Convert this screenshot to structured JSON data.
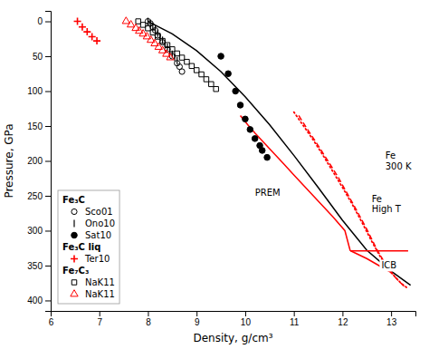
{
  "chart_data": {
    "type": "line",
    "xlabel": "Density, g/cm³",
    "ylabel": "Pressure, GPa",
    "xlim": [
      6,
      13.5
    ],
    "ylim": [
      415,
      -15
    ],
    "xticks": [
      6,
      7,
      8,
      9,
      10,
      11,
      12,
      13
    ],
    "yticks": [
      0,
      50,
      100,
      150,
      200,
      250,
      300,
      350,
      400
    ],
    "grid": false,
    "legend": "lower left",
    "series": [
      {
        "type": "line",
        "color": "#000000",
        "line_style": "solid",
        "x": [
          8.0,
          8.5,
          9.0,
          9.5,
          10.0,
          10.5,
          11.0,
          11.5,
          12.0,
          12.5,
          13.0,
          13.4
        ],
        "values": [
          0,
          18,
          42,
          72,
          108,
          148,
          192,
          238,
          285,
          328,
          358,
          378
        ]
      },
      {
        "type": "line",
        "color": "#ff0000",
        "line_style": "solid",
        "x": [
          9.9,
          10.05,
          10.2,
          10.4,
          10.6,
          10.8,
          11.0,
          11.2,
          11.4,
          11.6,
          11.8,
          12.05,
          12.16
        ],
        "values": [
          135,
          148,
          160,
          175,
          190,
          205,
          220,
          235,
          250,
          265,
          280,
          300,
          329
        ]
      },
      {
        "type": "line",
        "color": "#ff0000",
        "line_style": "solid",
        "x": [
          12.17,
          12.5,
          12.8,
          13.0
        ],
        "values": [
          329,
          340,
          352,
          360
        ]
      },
      {
        "type": "line",
        "color": "#ff0000",
        "line_style": "solid",
        "x": [
          12.16,
          13.35
        ],
        "values": [
          329,
          329
        ]
      },
      {
        "type": "line",
        "color": "#ff0000",
        "line_style": "dashed",
        "x": [
          11.1,
          11.3,
          11.5,
          11.7,
          11.9,
          12.1,
          12.3,
          12.5,
          12.7,
          12.9,
          13.1,
          13.3
        ],
        "values": [
          135,
          157,
          178,
          200,
          222,
          247,
          272,
          298,
          326,
          350,
          368,
          382
        ]
      },
      {
        "type": "line",
        "color": "#ff0000",
        "line_style": "dotted",
        "x": [
          11.0,
          11.2,
          11.4,
          11.6,
          11.8,
          12.0,
          12.2,
          12.4,
          12.6,
          12.8,
          13.0,
          13.2,
          13.35
        ],
        "values": [
          130,
          150,
          170,
          192,
          215,
          238,
          262,
          288,
          315,
          340,
          360,
          375,
          383
        ]
      },
      {
        "type": "scatter",
        "name": "Sco01",
        "group": "Fe₃C",
        "color": "#000000",
        "marker": "circle-open",
        "x": [
          8.0,
          8.05,
          8.1,
          8.15,
          8.2,
          8.3,
          8.4,
          8.5,
          8.6,
          8.65,
          8.7
        ],
        "values": [
          0,
          3,
          8,
          13,
          20,
          30,
          40,
          50,
          60,
          65,
          72
        ]
      },
      {
        "type": "scatter",
        "name": "Ono10",
        "group": "Fe₃C",
        "color": "#000000",
        "marker": "vline",
        "x": [
          8.0,
          8.05,
          8.1,
          8.15,
          8.2,
          8.25,
          8.3,
          8.35,
          8.4,
          8.45,
          8.5,
          8.55,
          8.6
        ],
        "values": [
          0,
          3,
          7,
          12,
          17,
          22,
          27,
          32,
          37,
          42,
          47,
          52,
          56
        ]
      },
      {
        "type": "scatter",
        "name": "Sat10",
        "group": "Fe₃C",
        "color": "#000000",
        "marker": "circle",
        "x": [
          9.5,
          9.65,
          9.8,
          9.9,
          10.0,
          10.1,
          10.2,
          10.3,
          10.35,
          10.45
        ],
        "values": [
          50,
          75,
          100,
          120,
          140,
          155,
          168,
          178,
          185,
          195
        ]
      },
      {
        "type": "scatter",
        "name": "Ter10",
        "group": "Fe₃C liq",
        "color": "#ff0000",
        "marker": "plus",
        "x": [
          6.55,
          6.65,
          6.75,
          6.85,
          6.95
        ],
        "values": [
          0,
          8,
          15,
          22,
          28
        ]
      },
      {
        "type": "scatter",
        "name": "NaK11",
        "group": "Fe₇C₃",
        "color": "#000000",
        "marker": "square-open",
        "x": [
          7.8,
          7.9,
          8.0,
          8.1,
          8.2,
          8.3,
          8.4,
          8.5,
          8.6,
          8.7,
          8.8,
          8.9,
          9.0,
          9.1,
          9.2,
          9.3,
          9.4
        ],
        "values": [
          0,
          5,
          10,
          16,
          22,
          28,
          34,
          40,
          46,
          52,
          58,
          64,
          70,
          76,
          83,
          90,
          97
        ]
      },
      {
        "type": "scatter",
        "name": "NaK11",
        "group": "Fe₇C₃",
        "color": "#ff0000",
        "marker": "triangle-open",
        "x": [
          7.55,
          7.65,
          7.75,
          7.82,
          7.9,
          7.98,
          8.06,
          8.14,
          8.22,
          8.3,
          8.38,
          8.46
        ],
        "values": [
          0,
          5,
          10,
          14,
          18,
          22,
          27,
          32,
          37,
          42,
          47,
          52
        ]
      }
    ],
    "annotations": [
      {
        "text": "Fe\n300 K",
        "x": 12.88,
        "y": 200
      },
      {
        "text": "Fe\nHigh T",
        "x": 12.6,
        "y": 262
      },
      {
        "text": "PREM",
        "x": 10.2,
        "y": 245
      },
      {
        "text": "ICB",
        "x": 12.8,
        "y": 350
      }
    ]
  }
}
